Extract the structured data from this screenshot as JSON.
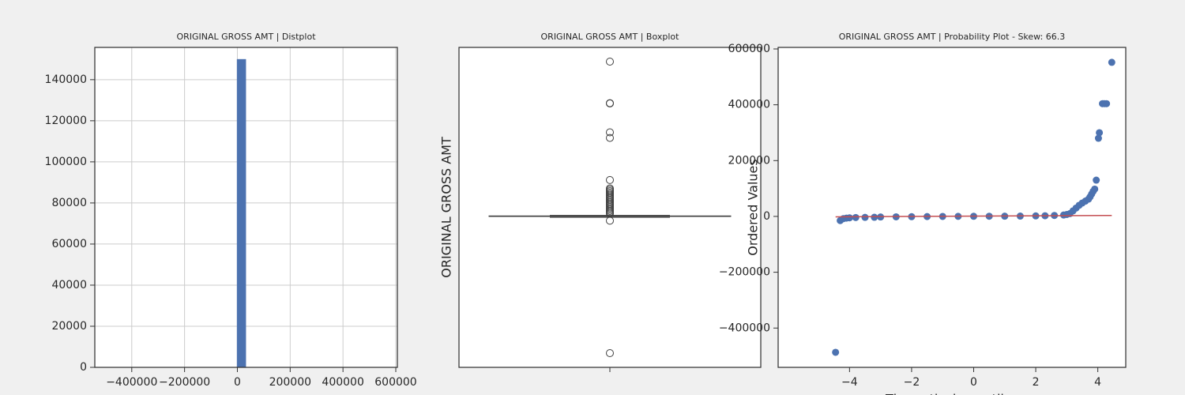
{
  "chart_data": [
    {
      "type": "histogram",
      "title": "ORIGINAL GROSS AMT | Distplot",
      "color": "#4c72b0",
      "grid": true,
      "bins": [
        -487000,
        -452350,
        -417700,
        -383050,
        -348400,
        -313750,
        -279100,
        -244450,
        -209800,
        -175150,
        -140500,
        -105850,
        -71200,
        -36550,
        -1900,
        32750,
        67400,
        102050,
        136700,
        171350,
        206000,
        240650,
        275300,
        309950,
        344600,
        379250,
        413900,
        448550,
        483200,
        517850,
        552500
      ],
      "counts": [
        1,
        0,
        0,
        0,
        0,
        0,
        0,
        0,
        0,
        0,
        0,
        0,
        0,
        20,
        150000,
        30,
        25,
        3,
        1,
        0,
        0,
        0,
        2,
        1,
        0,
        0,
        2,
        0,
        0,
        0
      ],
      "xlim": [
        -540000,
        606000
      ],
      "xticks": [
        {
          "value": -400000,
          "label": "−400000"
        },
        {
          "value": -200000,
          "label": "−200000"
        },
        0,
        200000,
        400000,
        600000
      ],
      "ylim": [
        0,
        155700
      ],
      "yticks": [
        0,
        20000,
        40000,
        60000,
        80000,
        100000,
        120000,
        140000
      ]
    },
    {
      "type": "box",
      "title": "ORIGINAL GROSS AMT | Boxplot",
      "ylabel": "ORIGINAL GROSS AMT",
      "color": "#3f3f3f",
      "stats": {
        "whislo": -3000,
        "q1": 300,
        "med": 800,
        "q3": 2000,
        "whishi": 4000
      },
      "outliers": [
        552000,
        404000,
        403000,
        300000,
        280000,
        130000,
        100000,
        95000,
        90000,
        85000,
        80000,
        75000,
        70000,
        65000,
        60000,
        55000,
        50000,
        45000,
        40000,
        35000,
        30000,
        25000,
        20000,
        15000,
        10000,
        -15000,
        -487000
      ],
      "ylim": [
        -537700,
        602700
      ]
    },
    {
      "type": "scatter",
      "title": "ORIGINAL GROSS AMT | Probability Plot - Skew: 66.3",
      "xlabel": "Theoretical quantiles",
      "ylabel": "Ordered Values",
      "color": "#4c72b0",
      "x": [
        -4.45,
        -4.3,
        -4.2,
        -4.1,
        -4.0,
        -3.8,
        -3.5,
        -3.2,
        -3.0,
        -2.5,
        -2.0,
        -1.5,
        -1.0,
        -0.5,
        0,
        0.5,
        1.0,
        1.5,
        2.0,
        2.3,
        2.6,
        2.9,
        3.0,
        3.1,
        3.2,
        3.3,
        3.4,
        3.5,
        3.6,
        3.7,
        3.75,
        3.8,
        3.85,
        3.9,
        3.95,
        4.02,
        4.05,
        4.15,
        4.22,
        4.28,
        4.45
      ],
      "y": [
        -487000,
        -15000,
        -8000,
        -6000,
        -5000,
        -4000,
        -3500,
        -3000,
        -2000,
        -1500,
        -1000,
        -500,
        0,
        200,
        400,
        600,
        800,
        1200,
        1800,
        2500,
        3500,
        5000,
        7000,
        10000,
        20000,
        30000,
        40000,
        48000,
        55000,
        62000,
        70000,
        80000,
        90000,
        98000,
        130000,
        280000,
        300000,
        404000,
        404000,
        404000,
        552000
      ],
      "fit_line": {
        "color": "#c44e52",
        "x": [
          -4.45,
          4.45
        ],
        "y": [
          -1500,
          3500
        ]
      },
      "xlim": [
        -6.3,
        4.9
      ],
      "xticks": [
        {
          "value": -4,
          "label": "−4"
        },
        {
          "value": -2,
          "label": "−2"
        },
        0,
        2,
        4
      ],
      "ylim": [
        -540800,
        605600
      ],
      "yticks": [
        {
          "value": -400000,
          "label": "−400000"
        },
        {
          "value": -200000,
          "label": "−200000"
        },
        0,
        200000,
        400000,
        600000
      ]
    }
  ]
}
